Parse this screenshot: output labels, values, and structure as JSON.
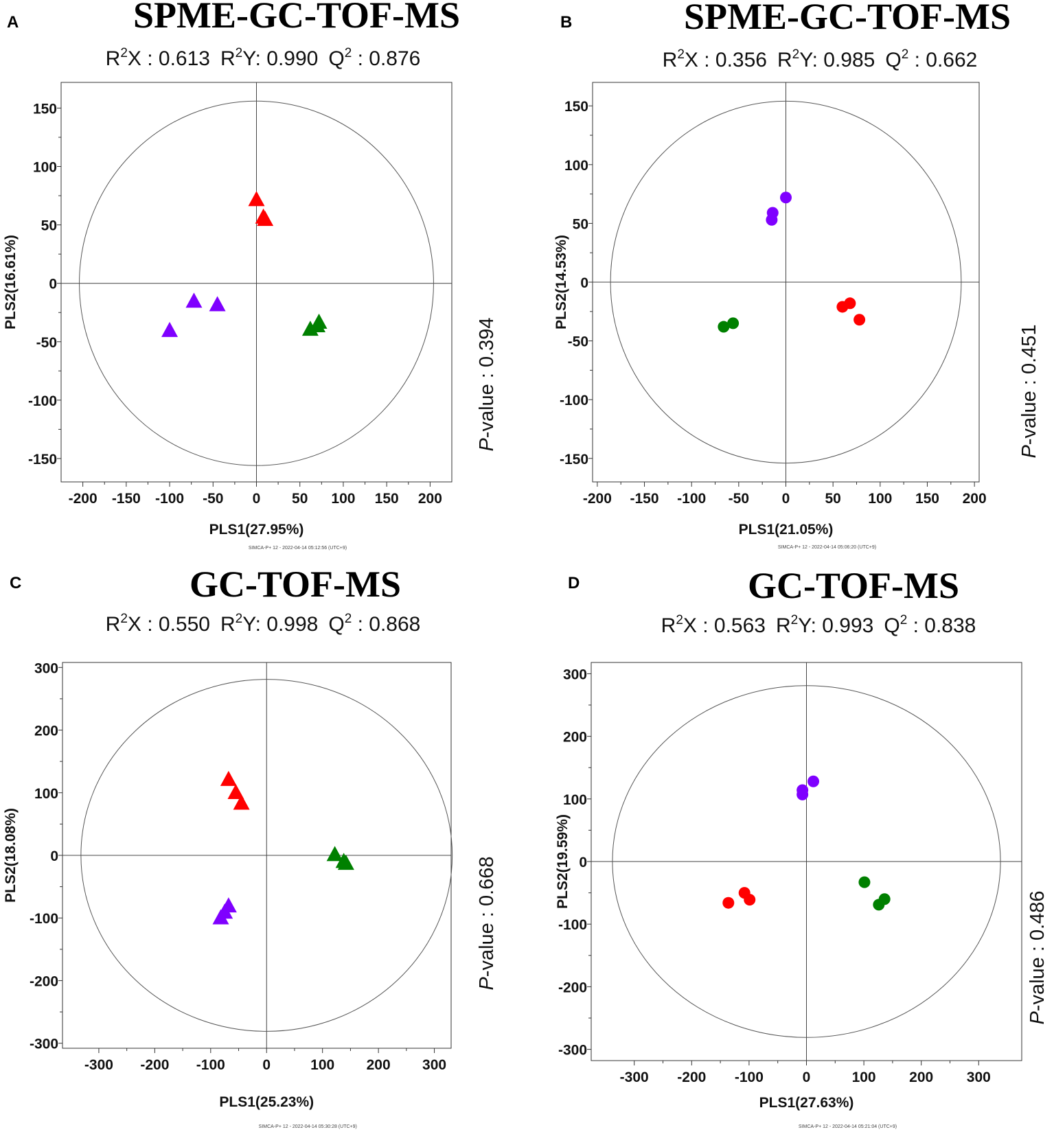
{
  "chart_data": [
    {
      "panel": "A",
      "type": "scatter",
      "title": "SPME-GC-TOF-MS",
      "stats": [
        {
          "base": "R",
          "sup": "2",
          "rest": "X : 0.613"
        },
        {
          "base": "R",
          "sup": "2",
          "rest": "Y: 0.990"
        },
        {
          "base": "Q",
          "sup": "2",
          "rest": " : 0.876"
        }
      ],
      "xlabel": "PLS1(27.95%)",
      "ylabel": "PLS2(16.61%)",
      "pvalue_italic": "P",
      "pvalue_rest": "-value : 0.394",
      "footer": "SIMCA-P+ 12 - 2022-04-14 05:12:56 (UTC+9)",
      "xlim": [
        -225,
        225
      ],
      "ylim": [
        -170,
        172
      ],
      "xticks": [
        -200,
        -150,
        -100,
        -50,
        0,
        50,
        100,
        150,
        200
      ],
      "yticks": [
        -150,
        -100,
        -50,
        0,
        50,
        100,
        150
      ],
      "ellipse": {
        "rx": 204,
        "ry": 156
      },
      "marker": "triangle",
      "series": [
        {
          "name": "red group",
          "color": "#ff0000",
          "points": [
            [
              0,
              71
            ],
            [
              8,
              56
            ],
            [
              10,
              54
            ]
          ]
        },
        {
          "name": "purple group",
          "color": "#7f00ff",
          "points": [
            [
              -72,
              -16
            ],
            [
              -45,
              -19
            ],
            [
              -100,
              -41
            ]
          ]
        },
        {
          "name": "green group",
          "color": "#008000",
          "points": [
            [
              72,
              -34
            ],
            [
              70,
              -37
            ],
            [
              62,
              -40
            ]
          ]
        }
      ]
    },
    {
      "panel": "B",
      "type": "scatter",
      "title": "SPME-GC-TOF-MS",
      "stats": [
        {
          "base": "R",
          "sup": "2",
          "rest": "X : 0.356"
        },
        {
          "base": "R",
          "sup": "2",
          "rest": "Y: 0.985"
        },
        {
          "base": "Q",
          "sup": "2",
          "rest": " : 0.662"
        }
      ],
      "xlabel": "PLS1(21.05%)",
      "ylabel": "PLS2(14.53%)",
      "pvalue_italic": "P",
      "pvalue_rest": "-value : 0.451",
      "footer": "SIMCA-P+ 12 - 2022-04-14 05:06:20 (UTC+9)",
      "xlim": [
        -205,
        205
      ],
      "ylim": [
        -170,
        170
      ],
      "xticks": [
        -200,
        -150,
        -100,
        -50,
        0,
        50,
        100,
        150,
        200
      ],
      "yticks": [
        -150,
        -100,
        -50,
        0,
        50,
        100,
        150
      ],
      "ellipse": {
        "rx": 186,
        "ry": 154
      },
      "marker": "circle",
      "series": [
        {
          "name": "purple group",
          "color": "#7f00ff",
          "points": [
            [
              0,
              72
            ],
            [
              -14,
              59
            ],
            [
              -15,
              53
            ]
          ]
        },
        {
          "name": "red group",
          "color": "#ff0000",
          "points": [
            [
              68,
              -18
            ],
            [
              60,
              -21
            ],
            [
              78,
              -32
            ]
          ]
        },
        {
          "name": "green group",
          "color": "#008000",
          "points": [
            [
              -56,
              -35
            ],
            [
              -66,
              -38
            ]
          ]
        }
      ]
    },
    {
      "panel": "C",
      "type": "scatter",
      "title": "GC-TOF-MS",
      "stats": [
        {
          "base": "R",
          "sup": "2",
          "rest": "X : 0.550"
        },
        {
          "base": "R",
          "sup": "2",
          "rest": "Y: 0.998"
        },
        {
          "base": "Q",
          "sup": "2",
          "rest": " : 0.868"
        }
      ],
      "xlabel": "PLS1(25.23%)",
      "ylabel": "PLS2(18.08%)",
      "pvalue_italic": "P",
      "pvalue_rest": "-value : 0.668",
      "footer": "SIMCA-P+ 12 - 2022-04-14 05:30:28 (UTC+9)",
      "xlim": [
        -365,
        330
      ],
      "ylim": [
        -308,
        308
      ],
      "xticks": [
        -300,
        -200,
        -100,
        0,
        100,
        200,
        300
      ],
      "yticks": [
        -300,
        -200,
        -100,
        0,
        100,
        200,
        300
      ],
      "ellipse": {
        "rx": 332,
        "ry": 281
      },
      "marker": "triangle",
      "series": [
        {
          "name": "red group",
          "color": "#ff0000",
          "points": [
            [
              -68,
              120
            ],
            [
              -55,
              99
            ],
            [
              -45,
              82
            ]
          ]
        },
        {
          "name": "green group",
          "color": "#008000",
          "points": [
            [
              122,
              0
            ],
            [
              138,
              -11
            ],
            [
              142,
              -14
            ]
          ]
        },
        {
          "name": "purple group",
          "color": "#7f00ff",
          "points": [
            [
              -68,
              -82
            ],
            [
              -75,
              -92
            ],
            [
              -82,
              -101
            ]
          ]
        }
      ]
    },
    {
      "panel": "D",
      "type": "scatter",
      "title": "GC-TOF-MS",
      "stats": [
        {
          "base": "R",
          "sup": "2",
          "rest": "X : 0.563"
        },
        {
          "base": "R",
          "sup": "2",
          "rest": "Y: 0.993"
        },
        {
          "base": "Q",
          "sup": "2",
          "rest": " : 0.838"
        }
      ],
      "xlabel": "PLS1(27.63%)",
      "ylabel": "PLS2(19.59%)",
      "pvalue_italic": "P",
      "pvalue_rest": "-value : 0.486",
      "footer": "SIMCA-P+ 12 - 2022-04-14 05:21:04 (UTC+9)",
      "xlim": [
        -375,
        375
      ],
      "ylim": [
        -318,
        318
      ],
      "xticks": [
        -300,
        -200,
        -100,
        0,
        100,
        200,
        300
      ],
      "yticks": [
        -300,
        -200,
        -100,
        0,
        100,
        200,
        300
      ],
      "ellipse": {
        "rx": 338,
        "ry": 281
      },
      "marker": "circle",
      "series": [
        {
          "name": "purple group",
          "color": "#7f00ff",
          "points": [
            [
              12,
              128
            ],
            [
              -7,
              114
            ],
            [
              -7,
              107
            ]
          ]
        },
        {
          "name": "green group",
          "color": "#008000",
          "points": [
            [
              101,
              -33
            ],
            [
              136,
              -60
            ],
            [
              126,
              -69
            ]
          ]
        },
        {
          "name": "red group",
          "color": "#ff0000",
          "points": [
            [
              -108,
              -50
            ],
            [
              -99,
              -61
            ],
            [
              -136,
              -66
            ]
          ]
        }
      ]
    }
  ]
}
